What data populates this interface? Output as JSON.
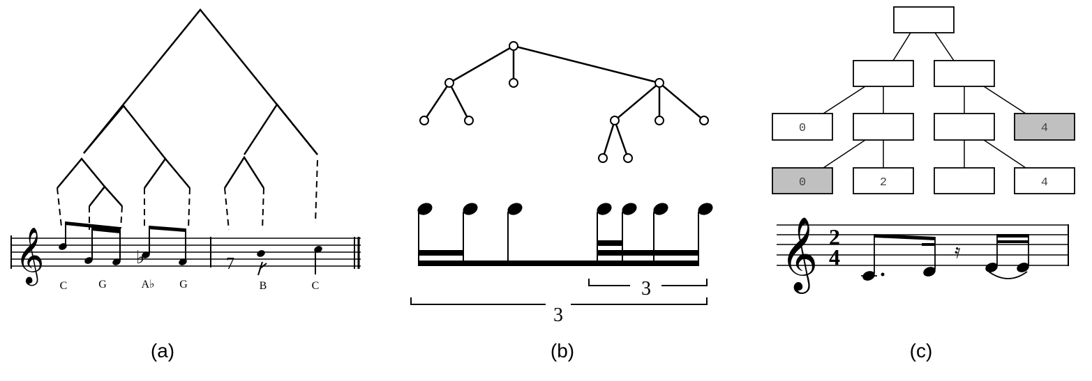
{
  "panels": {
    "a": {
      "caption": "(a)",
      "note_labels": [
        "C",
        "G",
        "A♭",
        "G",
        "B",
        "C"
      ]
    },
    "b": {
      "caption": "(b)",
      "tuplet_inner": "3",
      "tuplet_outer": "3"
    },
    "c": {
      "caption": "(c)",
      "time_signature": {
        "top": "2",
        "bottom": "4"
      },
      "leaf_values": [
        "0",
        "4",
        "0",
        "2",
        "",
        "4"
      ]
    }
  },
  "colors": {
    "ink": "#000000",
    "highlight": "#c0c0c0"
  }
}
